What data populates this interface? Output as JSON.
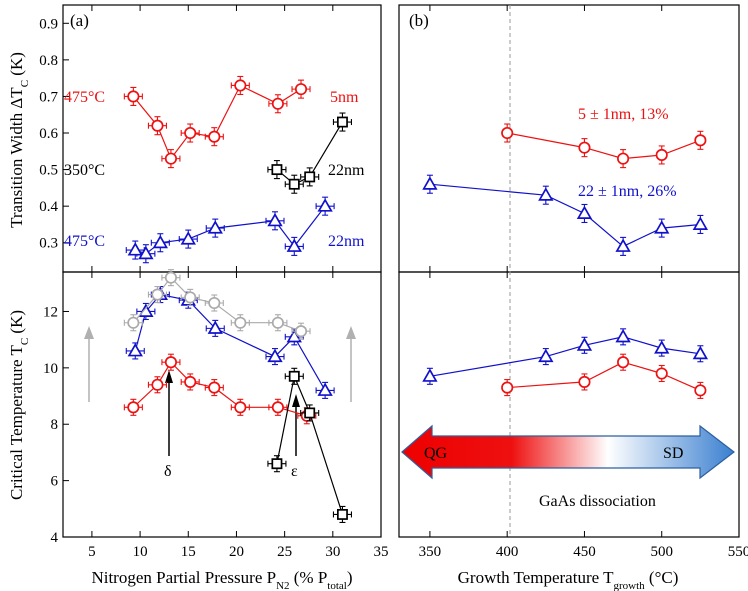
{
  "figure": {
    "panel_labels": [
      "(a)",
      "(b)"
    ],
    "ylabel_top_main": "Transition Width ΔT",
    "ylabel_top_sub": "C",
    "ylabel_top_unit": " (K)",
    "ylabel_bot_main": "Critical Temperature T",
    "ylabel_bot_sub": "C",
    "ylabel_bot_unit": " (K)",
    "xlabel_left_main": "Nitrogen Partial Pressure P",
    "xlabel_left_sub1": "N2",
    "xlabel_left_mid": " (% P",
    "xlabel_left_sub2": "total",
    "xlabel_left_end": ")",
    "xlabel_right_main": "Growth Temperature T",
    "xlabel_right_sub": "growth",
    "xlabel_right_end": " (°C)",
    "annotations": {
      "a_red_temp": "475°C",
      "a_red_size": "5nm",
      "a_black_temp": "350°C",
      "a_black_size": "22nm",
      "a_blue_temp": "475°C",
      "a_blue_size": "22nm",
      "b_red": "5 ± 1nm, 13%",
      "b_blue": "22 ± 1nm, 26%",
      "delta": "δ",
      "epsilon": "ε",
      "qg": "QG",
      "sd": "SD",
      "gaas": "GaAs dissociation"
    }
  },
  "colors": {
    "red": "#ee1111",
    "blue": "#1111cc",
    "black": "#000000",
    "gray": "#aaaaaa"
  },
  "chart_data": [
    {
      "type": "scatter",
      "panel": "(a) top",
      "xlim": [
        2,
        35
      ],
      "ylim": [
        0.22,
        0.95
      ],
      "xticks": [
        5,
        10,
        15,
        20,
        25,
        30,
        35
      ],
      "yticks": [
        0.3,
        0.4,
        0.5,
        0.6,
        0.7,
        0.8,
        0.9
      ],
      "ytick_labels": [
        "0.3",
        "0.4",
        "0.5",
        "0.6",
        "0.7",
        "0.8",
        "0.9"
      ],
      "series": [
        {
          "color": "red",
          "marker": "circle",
          "x": [
            9.3,
            11.8,
            13.2,
            15.2,
            17.7,
            20.4,
            24.3,
            26.7
          ],
          "y": [
            0.7,
            0.62,
            0.53,
            0.6,
            0.59,
            0.73,
            0.68,
            0.72
          ]
        },
        {
          "color": "black",
          "marker": "square",
          "x": [
            24.2,
            26.0,
            27.6,
            31.0
          ],
          "y": [
            0.5,
            0.46,
            0.48,
            0.63
          ]
        },
        {
          "color": "blue",
          "marker": "triangle",
          "x": [
            9.5,
            10.6,
            12.1,
            15.0,
            17.8,
            24.0,
            26.0,
            29.2
          ],
          "y": [
            0.28,
            0.27,
            0.3,
            0.31,
            0.34,
            0.36,
            0.29,
            0.4
          ]
        }
      ]
    },
    {
      "type": "scatter",
      "panel": "(b) top",
      "xlim": [
        330,
        550
      ],
      "ylim": [
        0.22,
        0.95
      ],
      "xticks": [
        350,
        400,
        450,
        500,
        550
      ],
      "series": [
        {
          "color": "red",
          "marker": "circle",
          "x": [
            400,
            450,
            475,
            500,
            525
          ],
          "y": [
            0.6,
            0.56,
            0.53,
            0.54,
            0.58
          ]
        },
        {
          "color": "blue",
          "marker": "triangle",
          "x": [
            350,
            425,
            450,
            475,
            500,
            525
          ],
          "y": [
            0.46,
            0.43,
            0.38,
            0.29,
            0.34,
            0.35
          ]
        }
      ]
    },
    {
      "type": "scatter",
      "panel": "(a) bottom",
      "xlim": [
        2,
        35
      ],
      "ylim": [
        4,
        13.4
      ],
      "xticks": [
        5,
        10,
        15,
        20,
        25,
        30,
        35
      ],
      "xtick_labels": [
        "5",
        "10",
        "15",
        "20",
        "25",
        "30",
        "35"
      ],
      "yticks": [
        4,
        6,
        8,
        10,
        12
      ],
      "ytick_labels": [
        "4",
        "6",
        "8",
        "10",
        "12"
      ],
      "series": [
        {
          "color": "red",
          "marker": "circle",
          "x": [
            9.3,
            11.8,
            13.2,
            15.2,
            17.7,
            20.4,
            24.3,
            27.3
          ],
          "y": [
            8.6,
            9.4,
            10.2,
            9.5,
            9.3,
            8.6,
            8.6,
            8.3
          ]
        },
        {
          "color": "blue",
          "marker": "triangle",
          "x": [
            9.5,
            10.6,
            12.1,
            15.0,
            17.8,
            24.0,
            26.0,
            29.2
          ],
          "y": [
            10.6,
            12.0,
            12.6,
            12.4,
            11.4,
            10.4,
            11.1,
            9.2
          ]
        },
        {
          "color": "gray",
          "marker": "circle",
          "x": [
            9.3,
            11.8,
            13.2,
            15.2,
            17.7,
            20.4,
            24.3,
            26.7
          ],
          "y": [
            11.6,
            12.6,
            13.2,
            12.5,
            12.3,
            11.6,
            11.6,
            11.3
          ]
        },
        {
          "color": "black",
          "marker": "square",
          "x": [
            24.2,
            26.0,
            27.6,
            31.0
          ],
          "y": [
            6.6,
            9.7,
            8.4,
            4.8
          ]
        }
      ]
    },
    {
      "type": "scatter",
      "panel": "(b) bottom",
      "xlim": [
        330,
        550
      ],
      "ylim": [
        4,
        13.4
      ],
      "xticks": [
        350,
        400,
        450,
        500,
        550
      ],
      "xtick_labels": [
        "350",
        "400",
        "450",
        "500",
        "550"
      ],
      "series": [
        {
          "color": "blue",
          "marker": "triangle",
          "x": [
            350,
            425,
            450,
            475,
            500,
            525
          ],
          "y": [
            9.7,
            10.4,
            10.8,
            11.1,
            10.7,
            10.5
          ]
        },
        {
          "color": "red",
          "marker": "circle",
          "x": [
            400,
            450,
            475,
            500,
            525
          ],
          "y": [
            9.3,
            9.5,
            10.2,
            9.8,
            9.2
          ]
        }
      ]
    }
  ]
}
